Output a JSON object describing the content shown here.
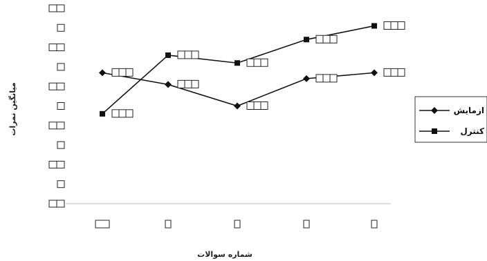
{
  "chart_data": {
    "type": "line",
    "xlabel": "شماره سوالات",
    "ylabel": "میانگین نمرات",
    "x": [
      1,
      2,
      3,
      4,
      5
    ],
    "ylim": [
      0,
      10
    ],
    "grid": false,
    "legend_position": "right",
    "tick_labels_legible": false,
    "series": [
      {
        "name": "ازمایش",
        "marker": "diamond",
        "color": "#111111",
        "values": [
          6.7,
          6.1,
          5.0,
          6.4,
          6.7
        ]
      },
      {
        "name": "کنترل",
        "marker": "square",
        "color": "#111111",
        "values": [
          4.6,
          7.6,
          7.2,
          8.4,
          9.1
        ]
      }
    ]
  }
}
